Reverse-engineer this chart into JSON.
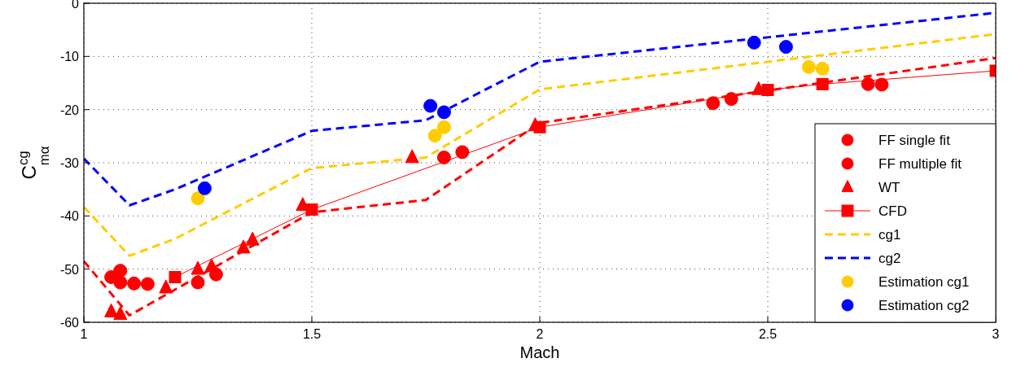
{
  "chart_data": {
    "type": "scatter",
    "xlabel": "Mach",
    "ylabel": "C$^{cg}$$_{mα}$",
    "xlim": [
      1,
      3
    ],
    "xticks": [
      1,
      1.5,
      2,
      2.5,
      3
    ],
    "ylim": [
      -60,
      0
    ],
    "yticks": [
      -60,
      -50,
      -40,
      -30,
      -20,
      -10,
      0
    ],
    "grid": true,
    "legend": "bottom right",
    "series": [
      {
        "name": "FF single fit",
        "marker": "circle",
        "color": "#ff0000",
        "x": [
          1.06,
          1.08,
          1.14,
          1.25,
          1.79,
          2.42,
          2.75
        ],
        "values": [
          -51.5,
          -50.3,
          -52.8,
          -52.5,
          -29,
          -18,
          -15.3
        ]
      },
      {
        "name": "FF multiple fit",
        "marker": "circle",
        "color": "#ff0000",
        "x": [
          1.08,
          1.11,
          1.29,
          1.83,
          2.38,
          2.72
        ],
        "values": [
          -52.5,
          -52.7,
          -51,
          -28,
          -18.8,
          -15.2
        ]
      },
      {
        "name": "WT",
        "marker": "triangle",
        "color": "#ff0000",
        "x": [
          1.06,
          1.08,
          1.18,
          1.25,
          1.28,
          1.35,
          1.37,
          1.48,
          1.72,
          1.99,
          2.48
        ],
        "values": [
          -58,
          -58.5,
          -53.5,
          -50,
          -49.5,
          -46,
          -44.5,
          -38,
          -29,
          -23,
          -16.2
        ]
      },
      {
        "name": "CFD",
        "type": "line",
        "marker": "square",
        "line_style": "solid",
        "color": "#ff0000",
        "x": [
          1.2,
          1.5,
          2,
          2.5,
          2.62,
          3
        ],
        "values": [
          -51.5,
          -38.8,
          -23.3,
          -16.3,
          -15.2,
          -12.7
        ]
      },
      {
        "type": "line",
        "marker": "none",
        "line_style": "dashed",
        "color": "#ff0000",
        "x": [
          1,
          1.1,
          1.5,
          1.75,
          2,
          3
        ],
        "values": [
          -48.5,
          -58.7,
          -39.3,
          -37,
          -22.5,
          -10.3
        ]
      },
      {
        "name": "cg1",
        "type": "line",
        "marker": "none",
        "line_style": "dashed",
        "color": "#ffcc00",
        "x": [
          1,
          1.1,
          1.2,
          1.5,
          1.75,
          2,
          3
        ],
        "values": [
          -38.3,
          -47.5,
          -44.3,
          -31,
          -29,
          -16.2,
          -5.8
        ]
      },
      {
        "name": "cg2",
        "type": "line",
        "marker": "none",
        "line_style": "dashed",
        "color": "#0000ff",
        "x": [
          1,
          1.1,
          1.2,
          1.5,
          1.75,
          2,
          3
        ],
        "values": [
          -29.2,
          -38,
          -35,
          -24,
          -22,
          -11,
          -1.8
        ]
      },
      {
        "name": "Estimation cg1",
        "marker": "circle",
        "color": "#ffcc00",
        "x": [
          1.25,
          1.77,
          1.79,
          2.59,
          2.62
        ],
        "values": [
          -36.7,
          -24.9,
          -23.3,
          -12,
          -12.3
        ]
      },
      {
        "name": "Estimation cg2",
        "marker": "circle",
        "color": "#0000ff",
        "x": [
          1.265,
          1.76,
          1.79,
          2.47,
          2.54
        ],
        "values": [
          -34.8,
          -19.3,
          -20.5,
          -7.4,
          -8.2
        ]
      }
    ]
  }
}
